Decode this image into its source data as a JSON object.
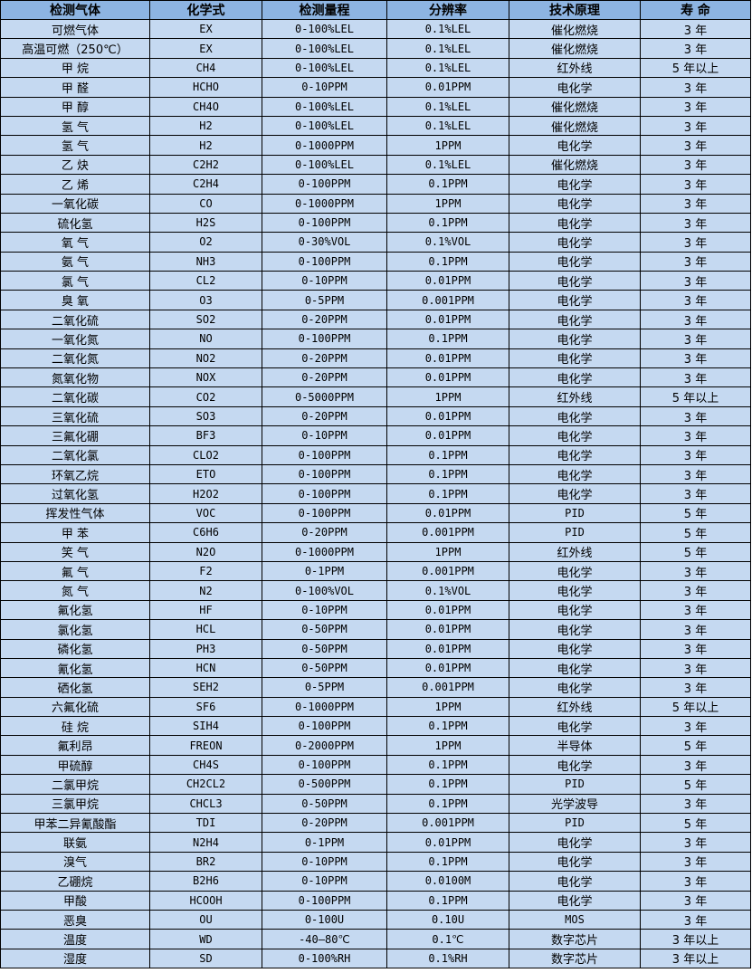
{
  "colors": {
    "header_bg": "#8DB4E2",
    "row_bg": "#C5D9F1"
  },
  "headers": [
    "检测气体",
    "化学式",
    "检测量程",
    "分辨率",
    "技术原理",
    "寿 命"
  ],
  "rows": [
    [
      "可燃气体",
      "EX",
      "0-100%LEL",
      "0.1%LEL",
      "催化燃烧",
      "3 年"
    ],
    [
      "高温可燃（250℃）",
      "EX",
      "0-100%LEL",
      "0.1%LEL",
      "催化燃烧",
      "3 年"
    ],
    [
      "甲 烷",
      "CH4",
      "0-100%LEL",
      "0.1%LEL",
      "红外线",
      "5 年以上"
    ],
    [
      "甲 醛",
      "HCHO",
      "0-10PPM",
      "0.01PPM",
      "电化学",
      "3 年"
    ],
    [
      "甲 醇",
      "CH4O",
      "0-100%LEL",
      "0.1%LEL",
      "催化燃烧",
      "3 年"
    ],
    [
      "氢 气",
      "H2",
      "0-100%LEL",
      "0.1%LEL",
      "催化燃烧",
      "3 年"
    ],
    [
      "氢 气",
      "H2",
      "0-1000PPM",
      "1PPM",
      "电化学",
      "3 年"
    ],
    [
      "乙 炔",
      "C2H2",
      "0-100%LEL",
      "0.1%LEL",
      "催化燃烧",
      "3 年"
    ],
    [
      "乙 烯",
      "C2H4",
      "0-100PPM",
      "0.1PPM",
      "电化学",
      "3 年"
    ],
    [
      "一氧化碳",
      "CO",
      "0-1000PPM",
      "1PPM",
      "电化学",
      "3 年"
    ],
    [
      "硫化氢",
      "H2S",
      "0-100PPM",
      "0.1PPM",
      "电化学",
      "3 年"
    ],
    [
      "氧 气",
      "O2",
      "0-30%VOL",
      "0.1%VOL",
      "电化学",
      "3 年"
    ],
    [
      "氨 气",
      "NH3",
      "0-100PPM",
      "0.1PPM",
      "电化学",
      "3 年"
    ],
    [
      "氯 气",
      "CL2",
      "0-10PPM",
      "0.01PPM",
      "电化学",
      "3 年"
    ],
    [
      "臭 氧",
      "O3",
      "0-5PPM",
      "0.001PPM",
      "电化学",
      "3 年"
    ],
    [
      "二氧化硫",
      "SO2",
      "0-20PPM",
      "0.01PPM",
      "电化学",
      "3 年"
    ],
    [
      "一氧化氮",
      "NO",
      "0-100PPM",
      "0.1PPM",
      "电化学",
      "3 年"
    ],
    [
      "二氧化氮",
      "NO2",
      "0-20PPM",
      "0.01PPM",
      "电化学",
      "3 年"
    ],
    [
      "氮氧化物",
      "NOX",
      "0-20PPM",
      "0.01PPM",
      "电化学",
      "3 年"
    ],
    [
      "二氧化碳",
      "CO2",
      "0-5000PPM",
      "1PPM",
      "红外线",
      "5 年以上"
    ],
    [
      "三氧化硫",
      "SO3",
      "0-20PPM",
      "0.01PPM",
      "电化学",
      "3 年"
    ],
    [
      "三氟化硼",
      "BF3",
      "0-10PPM",
      "0.01PPM",
      "电化学",
      "3 年"
    ],
    [
      "二氧化氯",
      "CLO2",
      "0-100PPM",
      "0.1PPM",
      "电化学",
      "3 年"
    ],
    [
      "环氧乙烷",
      "ETO",
      "0-100PPM",
      "0.1PPM",
      "电化学",
      "3 年"
    ],
    [
      "过氧化氢",
      "H2O2",
      "0-100PPM",
      "0.1PPM",
      "电化学",
      "3 年"
    ],
    [
      "挥发性气体",
      "VOC",
      "0-100PPM",
      "0.01PPM",
      "PID",
      "5 年"
    ],
    [
      "甲 苯",
      "C6H6",
      "0-20PPM",
      "0.001PPM",
      "PID",
      "5 年"
    ],
    [
      "笑 气",
      "N2O",
      "0-1000PPM",
      "1PPM",
      "红外线",
      "5 年"
    ],
    [
      "氟 气",
      "F2",
      "0-1PPM",
      "0.001PPM",
      "电化学",
      "3 年"
    ],
    [
      "氮 气",
      "N2",
      "0-100%VOL",
      "0.1%VOL",
      "电化学",
      "3 年"
    ],
    [
      "氟化氢",
      "HF",
      "0-10PPM",
      "0.01PPM",
      "电化学",
      "3 年"
    ],
    [
      "氯化氢",
      "HCL",
      "0-50PPM",
      "0.01PPM",
      "电化学",
      "3 年"
    ],
    [
      "磷化氢",
      "PH3",
      "0-50PPM",
      "0.01PPM",
      "电化学",
      "3 年"
    ],
    [
      "氰化氢",
      "HCN",
      "0-50PPM",
      "0.01PPM",
      "电化学",
      "3 年"
    ],
    [
      "硒化氢",
      "SEH2",
      "0-5PPM",
      "0.001PPM",
      "电化学",
      "3 年"
    ],
    [
      "六氟化硫",
      "SF6",
      "0-1000PPM",
      "1PPM",
      "红外线",
      "5 年以上"
    ],
    [
      "硅 烷",
      "SIH4",
      "0-100PPM",
      "0.1PPM",
      "电化学",
      "3 年"
    ],
    [
      "氟利昂",
      "FREON",
      "0-2000PPM",
      "1PPM",
      "半导体",
      "5 年"
    ],
    [
      "甲硫醇",
      "CH4S",
      "0-100PPM",
      "0.1PPM",
      "电化学",
      "3 年"
    ],
    [
      "二氯甲烷",
      "CH2CL2",
      "0-500PPM",
      "0.1PPM",
      "PID",
      "5 年"
    ],
    [
      "三氯甲烷",
      "CHCL3",
      "0-50PPM",
      "0.1PPM",
      "光学波导",
      "3 年"
    ],
    [
      "甲苯二异氰酸酯",
      "TDI",
      "0-20PPM",
      "0.001PPM",
      "PID",
      "5 年"
    ],
    [
      "联氨",
      "N2H4",
      "0-1PPM",
      "0.01PPM",
      "电化学",
      "3 年"
    ],
    [
      "溴气",
      "BR2",
      "0-10PPM",
      "0.1PPM",
      "电化学",
      "3 年"
    ],
    [
      "乙硼烷",
      "B2H6",
      "0-10PPM",
      "0.0100M",
      "电化学",
      "3 年"
    ],
    [
      "甲酸",
      "HCOOH",
      "0-100PPM",
      "0.1PPM",
      "电化学",
      "3 年"
    ],
    [
      "恶臭",
      "OU",
      "0-100U",
      "0.10U",
      "MOS",
      "3 年"
    ],
    [
      "温度",
      "WD",
      "-40—80℃",
      "0.1℃",
      "数字芯片",
      "3 年以上"
    ],
    [
      "湿度",
      "SD",
      "0-100%RH",
      "0.1%RH",
      "数字芯片",
      "3 年以上"
    ]
  ]
}
